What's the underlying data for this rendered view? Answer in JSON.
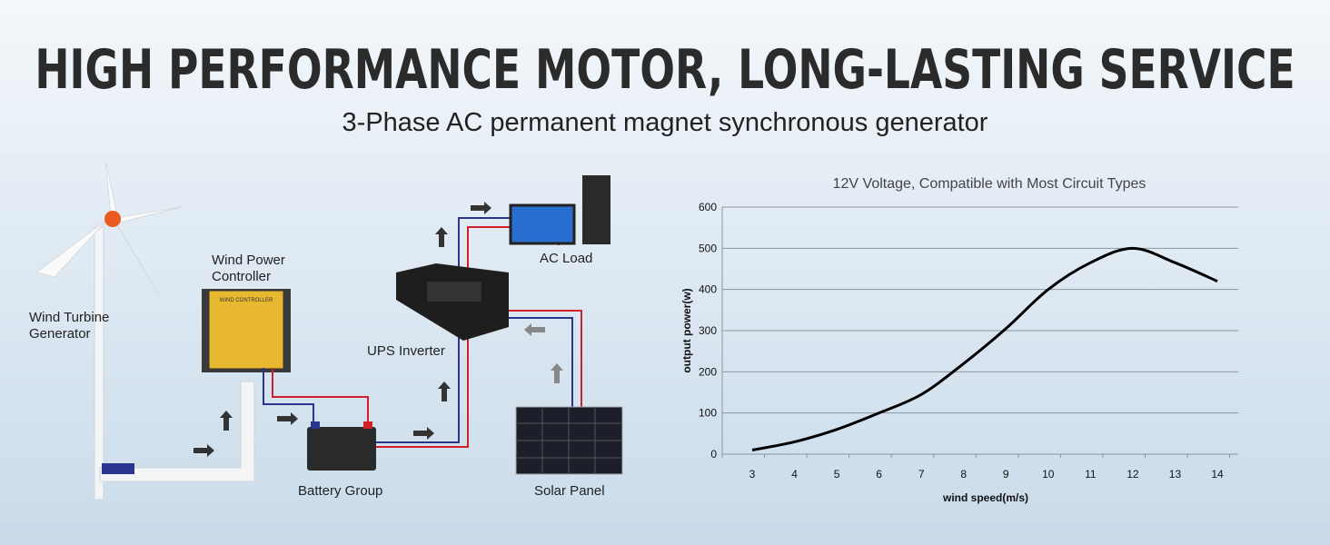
{
  "header": {
    "title": "HIGH PERFORMANCE MOTOR, LONG-LASTING SERVICE",
    "subtitle": "3-Phase AC permanent magnet synchronous generator"
  },
  "diagram": {
    "labels": {
      "wind_turbine": "Wind Turbine Generator",
      "controller": "Wind Power Controller",
      "inverter": "UPS Inverter",
      "ac_load": "AC Load",
      "battery": "Battery Group",
      "solar": "Solar Panel"
    },
    "controller_face": "WIND CONTROLLER",
    "colors": {
      "positive_wire": "#d0202a",
      "negative_wire": "#2a3590",
      "controller": "#e8b830"
    }
  },
  "chart_data": {
    "type": "line",
    "title": "12V Voltage, Compatible with Most Circuit Types",
    "xlabel": "wind speed(m/s)",
    "ylabel": "output power(w)",
    "x": [
      3,
      4,
      5,
      6,
      7,
      8,
      9,
      10,
      11,
      12,
      13,
      14
    ],
    "values": [
      10,
      30,
      60,
      100,
      145,
      220,
      305,
      400,
      465,
      500,
      465,
      420
    ],
    "xticks": [
      "3",
      "4",
      "5",
      "6",
      "7",
      "8",
      "9",
      "10",
      "11",
      "12",
      "13",
      "14"
    ],
    "yticks": [
      "0",
      "100",
      "200",
      "300",
      "400",
      "500",
      "600"
    ],
    "ylim": [
      0,
      600
    ],
    "grid": "horizontal",
    "line_color": "#000000"
  }
}
